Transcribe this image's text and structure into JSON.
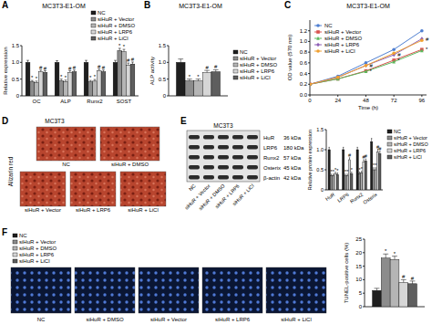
{
  "panel_letters": [
    "A",
    "B",
    "C",
    "D",
    "E",
    "F"
  ],
  "chart_data": [
    {
      "type": "bar",
      "title": "MC3T3-E1-OM",
      "y_label": "Relative expression",
      "categories": [
        "OC",
        "ALP",
        "Runx2",
        "SOST"
      ],
      "series": [
        {
          "name": "NC",
          "color": "#1f1f1f",
          "values": [
            1.0,
            1.0,
            1.0,
            1.0
          ],
          "errors": [
            0.06,
            0.05,
            0.06,
            0.06
          ]
        },
        {
          "name": "siHuR + Vector",
          "color": "#8c8c8c",
          "values": [
            0.42,
            0.45,
            0.42,
            1.35
          ],
          "errors": [
            0.04,
            0.05,
            0.04,
            0.07
          ],
          "sig": [
            "*",
            "*",
            "*",
            "*"
          ]
        },
        {
          "name": "siHuR + DMSO",
          "color": "#b5b5b5",
          "values": [
            0.4,
            0.43,
            0.44,
            1.32
          ],
          "errors": [
            0.04,
            0.04,
            0.05,
            0.07
          ],
          "sig": [
            "*",
            "*",
            "*",
            "*"
          ]
        },
        {
          "name": "siHuR + LRP6",
          "color": "#d6d6d6",
          "values": [
            0.72,
            0.7,
            0.75,
            0.92
          ],
          "errors": [
            0.05,
            0.05,
            0.05,
            0.06
          ],
          "sig": [
            "#",
            "#",
            "#",
            "#"
          ]
        },
        {
          "name": "siHuR + LiCl",
          "color": "#5e5e5e",
          "values": [
            0.7,
            0.72,
            0.72,
            0.95
          ],
          "errors": [
            0.05,
            0.05,
            0.05,
            0.06
          ],
          "sig": [
            "#",
            "#",
            "#",
            "#"
          ]
        }
      ],
      "ylim": [
        0,
        1.5
      ],
      "yticks": [
        0,
        0.5,
        {
          "value": 1,
          "label": "1.0"
        },
        1.5
      ],
      "legend": "top-right"
    },
    {
      "type": "bar",
      "title": "MC3T3-E1-OM",
      "y_label": "ALP activity",
      "categories": [
        null
      ],
      "series": [
        {
          "name": "NC",
          "color": "#1f1f1f",
          "values": [
            1.0
          ],
          "errors": [
            0.1
          ]
        },
        {
          "name": "siHuR + Vector",
          "color": "#8c8c8c",
          "values": [
            0.45
          ],
          "errors": [
            0.05
          ],
          "sig": [
            "*"
          ]
        },
        {
          "name": "siHuR + DMSO",
          "color": "#b5b5b5",
          "values": [
            0.45
          ],
          "errors": [
            0.05
          ],
          "sig": [
            "*"
          ]
        },
        {
          "name": "siHuR + LRP6",
          "color": "#d6d6d6",
          "values": [
            0.7
          ],
          "errors": [
            0.06
          ],
          "sig": [
            "#"
          ]
        },
        {
          "name": "siHuR + LiCl",
          "color": "#5e5e5e",
          "values": [
            0.72
          ],
          "errors": [
            0.06
          ],
          "sig": [
            "#"
          ]
        }
      ],
      "ylim": [
        0,
        1.5
      ],
      "yticks": [
        0,
        0.5,
        {
          "value": 1,
          "label": "1.0"
        },
        1.5
      ],
      "legend": "right"
    },
    {
      "type": "line",
      "title": "MC3T3-E1-OM",
      "x_label": "Time (h)",
      "y_label": "OD value (570 nm)",
      "x": [
        0,
        24,
        48,
        72,
        96
      ],
      "series": [
        {
          "name": "NC",
          "color": "#4f7fd1",
          "marker": "circle",
          "line_style": "solid",
          "values": [
            0.2,
            0.35,
            0.6,
            0.85,
            1.2
          ]
        },
        {
          "name": "siHuR + Vector",
          "color": "#d9534f",
          "marker": "square",
          "line_style": "solid",
          "values": [
            0.2,
            0.3,
            0.45,
            0.65,
            0.85
          ],
          "sig": [
            null,
            null,
            "*",
            "*",
            "*"
          ]
        },
        {
          "name": "siHuR + DMSO",
          "color": "#5cb85c",
          "marker": "triangle",
          "line_style": "solid",
          "values": [
            0.2,
            0.3,
            0.44,
            0.62,
            0.83
          ]
        },
        {
          "name": "siHuR + LRP6",
          "color": "#8e5fb5",
          "marker": "diamond",
          "line_style": "solid",
          "values": [
            0.2,
            0.33,
            0.55,
            0.75,
            1.05
          ],
          "sig": [
            null,
            null,
            "#",
            "#",
            "#"
          ]
        },
        {
          "name": "siHuR + LiCl",
          "color": "#f0a030",
          "marker": "circle",
          "line_style": "solid",
          "values": [
            0.2,
            0.33,
            0.55,
            0.78,
            1.02
          ]
        }
      ],
      "xlim": [
        0,
        100
      ],
      "xticks": [
        0,
        24,
        48,
        72,
        96
      ],
      "ylim": [
        0,
        1.4
      ],
      "yticks": [
        {
          "value": 0,
          "label": "0.0"
        },
        0.2,
        0.4,
        0.6,
        0.8,
        {
          "value": 1,
          "label": "1.0"
        },
        1.2
      ],
      "legend": "top-left"
    },
    {
      "type": "bar",
      "y_label": "Relative protein expression",
      "categories": [
        "HuR",
        "LRP6",
        "Runx2",
        "Osterix"
      ],
      "series": [
        {
          "name": "NC",
          "color": "#1f1f1f",
          "values": [
            1.0,
            1.0,
            1.0,
            1.2
          ],
          "errors": [
            0.06,
            0.06,
            0.06,
            0.08
          ]
        },
        {
          "name": "siHuR + Vector",
          "color": "#8c8c8c",
          "values": [
            0.35,
            0.35,
            0.4,
            0.5
          ],
          "errors": [
            0.04,
            0.04,
            0.04,
            0.05
          ],
          "sig": [
            "*",
            "*",
            "*",
            "*"
          ]
        },
        {
          "name": "siHuR + DMSO",
          "color": "#b5b5b5",
          "values": [
            0.35,
            0.35,
            0.42,
            0.5
          ],
          "errors": [
            0.04,
            0.04,
            0.04,
            0.05
          ],
          "sig": [
            "*",
            "*",
            "*",
            "*"
          ]
        },
        {
          "name": "siHuR + LRP6",
          "color": "#d6d6d6",
          "values": [
            0.4,
            0.75,
            0.7,
            0.95
          ],
          "errors": [
            0.04,
            0.05,
            0.05,
            0.06
          ],
          "sig": [
            "*",
            "#",
            "#",
            "#"
          ]
        },
        {
          "name": "siHuR + LiCl",
          "color": "#5e5e5e",
          "values": [
            0.38,
            0.4,
            0.72,
            0.9
          ],
          "errors": [
            0.04,
            0.04,
            0.05,
            0.06
          ],
          "sig": [
            "*",
            "*",
            "#",
            "#"
          ]
        }
      ],
      "ylim": [
        0,
        1.5
      ],
      "yticks": [
        0,
        0.5,
        {
          "value": 1,
          "label": "1.0"
        },
        1.5
      ],
      "legend": "right"
    },
    {
      "type": "bar",
      "y_label": "TUNEL-positive cells (%)",
      "categories": [
        null
      ],
      "series": [
        {
          "name": "NC",
          "color": "#1f1f1f",
          "values": [
            6
          ],
          "errors": [
            0.8
          ]
        },
        {
          "name": "siHuR + Vector",
          "color": "#8c8c8c",
          "values": [
            18
          ],
          "errors": [
            1.5
          ],
          "sig": [
            "*"
          ]
        },
        {
          "name": "siHuR + DMSO",
          "color": "#b5b5b5",
          "values": [
            17.5
          ],
          "errors": [
            1.2
          ],
          "sig": [
            "*"
          ]
        },
        {
          "name": "siHuR + LRP6",
          "color": "#d6d6d6",
          "values": [
            9
          ],
          "errors": [
            1.0
          ],
          "sig": [
            "#"
          ]
        },
        {
          "name": "siHuR + LiCl",
          "color": "#5e5e5e",
          "values": [
            8.5
          ],
          "errors": [
            1.0
          ],
          "sig": [
            "#"
          ]
        }
      ],
      "ylim": [
        0,
        25
      ],
      "yticks": [
        0,
        5,
        10,
        15,
        20,
        25
      ],
      "legend": "top-left"
    }
  ],
  "alizarin": {
    "cell_line": "MC3T3",
    "stain": "Alizarin red",
    "images": [
      "NC",
      "siHuR + DMSO",
      "siHuR + Vector",
      "siHuR + LRP6",
      "siHuR + LiCl"
    ]
  },
  "western_blot": {
    "cell_line": "MC3T3",
    "lanes": [
      "NC",
      "siHuR + Vector",
      "siHuR + DMSO",
      "siHuR + LRP6",
      "siHuR + LiCl"
    ],
    "proteins": [
      {
        "name": "HuR",
        "size": "36 kDa"
      },
      {
        "name": "LRP6",
        "size": "180 kDa"
      },
      {
        "name": "Runx2",
        "size": "57 kDa"
      },
      {
        "name": "Osterix",
        "size": "45 kDa"
      },
      {
        "name": "β-actin",
        "size": "42 kDa"
      }
    ]
  },
  "tunel_images": {
    "images": [
      "NC",
      "siHuR + DMSO",
      "siHuR + Vector",
      "siHuR + LRP6",
      "siHuR + LiCl"
    ]
  }
}
